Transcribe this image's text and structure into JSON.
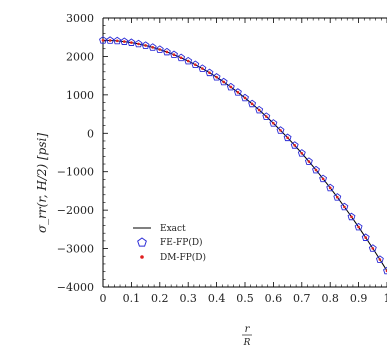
{
  "chart_data": {
    "type": "line",
    "xlabel_top": "r",
    "xlabel_bottom": "R",
    "ylabel": "σ_rr(r, H/2) [psi]",
    "xlim": [
      0,
      1.0
    ],
    "ylim": [
      -4000,
      3000
    ],
    "x_ticks": [
      "0",
      "0.1",
      "0.2",
      "0.3",
      "0.4",
      "0.5",
      "0.6",
      "0.7",
      "0.8",
      "0.9",
      "1"
    ],
    "y_ticks": [
      "3000",
      "2000",
      "1000",
      "0",
      "−1000",
      "−2000",
      "−3000",
      "−4000"
    ],
    "grid": false,
    "legend_position": "lower-left",
    "series": [
      {
        "name": "Exact",
        "style": "line",
        "color": "#000000"
      },
      {
        "name": "FE-FP(D)",
        "style": "pentagon-marker",
        "color": "#2b2bd6"
      },
      {
        "name": "DM-FP(D)",
        "style": "dot-marker",
        "color": "#e02020"
      }
    ],
    "sample_x": [
      0,
      0.025,
      0.05,
      0.075,
      0.1,
      0.125,
      0.15,
      0.175,
      0.2,
      0.225,
      0.25,
      0.275,
      0.3,
      0.325,
      0.35,
      0.375,
      0.4,
      0.425,
      0.45,
      0.475,
      0.5,
      0.525,
      0.55,
      0.575,
      0.6,
      0.625,
      0.65,
      0.675,
      0.7,
      0.725,
      0.75,
      0.775,
      0.8,
      0.825,
      0.85,
      0.875,
      0.9,
      0.925,
      0.95,
      0.975,
      1.0
    ],
    "sample_y": [
      2420,
      2416,
      2405,
      2386,
      2360,
      2326,
      2285,
      2236,
      2180,
      2116,
      2045,
      1966,
      1880,
      1786,
      1685,
      1576,
      1460,
      1336,
      1205,
      1066,
      920,
      766,
      605,
      436,
      260,
      76,
      -115,
      -314,
      -520,
      -734,
      -955,
      -1184,
      -1420,
      -1664,
      -1915,
      -2174,
      -2440,
      -2714,
      -2995,
      -3284,
      -3580
    ]
  }
}
